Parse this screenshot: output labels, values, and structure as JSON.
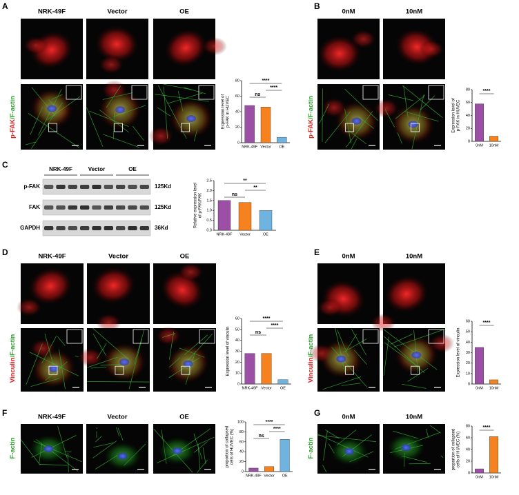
{
  "panels": [
    {
      "letter": "A",
      "columns": [
        "NRK-49F",
        "Vector",
        "OE"
      ],
      "row_label": [
        "p-FAK",
        "/F-actin"
      ]
    },
    {
      "letter": "B",
      "columns": [
        "0nM",
        "10nM"
      ],
      "row_label": [
        "p-FAK",
        "/F-actin"
      ]
    },
    {
      "letter": "C",
      "columns": [
        "NRK-49F",
        "Vector",
        "OE"
      ],
      "blot_rows": [
        "p-FAK",
        "FAK",
        "GAPDH"
      ],
      "blot_sizes": [
        "125Kd",
        "125Kd",
        "36Kd"
      ]
    },
    {
      "letter": "D",
      "columns": [
        "NRK-49F",
        "Vector",
        "OE"
      ],
      "row_label": [
        "Vinculin",
        "/F-actin"
      ]
    },
    {
      "letter": "E",
      "columns": [
        "0nM",
        "10nM"
      ],
      "row_label": [
        "Vinculin",
        "/F-actin"
      ]
    },
    {
      "letter": "F",
      "columns": [
        "NRK-49F",
        "Vector",
        "OE"
      ],
      "row_label": [
        "F-actin"
      ]
    },
    {
      "letter": "G",
      "columns": [
        "0nM",
        "10nM"
      ],
      "row_label": [
        "F-actin"
      ]
    }
  ],
  "chart_data": [
    {
      "type": "bar",
      "y_label": [
        "Expression level of",
        "p-FAK in HUVEC"
      ],
      "categories": [
        "NRK-49F",
        "Vector",
        "OE"
      ],
      "values": [
        48,
        46,
        7
      ],
      "colors": [
        "#9b4fa5",
        "#f5821f",
        "#6fb3e0"
      ],
      "ylim": [
        0,
        80
      ],
      "yticks": [
        0,
        20,
        40,
        60,
        80
      ],
      "annotations": [
        "****",
        "ns",
        "****"
      ]
    },
    {
      "type": "bar",
      "y_label": [
        "Expression level of",
        "p-FAK in HUVEC"
      ],
      "categories": [
        "0nM",
        "10nM"
      ],
      "values": [
        58,
        8
      ],
      "colors": [
        "#9b4fa5",
        "#f5821f"
      ],
      "ylim": [
        0,
        80
      ],
      "yticks": [
        0,
        20,
        40,
        60,
        80
      ],
      "annotations": [
        "****"
      ]
    },
    {
      "type": "bar",
      "y_label": [
        "Relative expression level",
        "of p-FAK/FAK"
      ],
      "categories": [
        "NRK-49F",
        "Vector",
        "OE"
      ],
      "values": [
        1.5,
        1.4,
        1.0
      ],
      "colors": [
        "#9b4fa5",
        "#f5821f",
        "#6fb3e0"
      ],
      "ylim": [
        0,
        2.5
      ],
      "yticks": [
        {
          "value": 0,
          "label": "0.0"
        },
        0.5,
        {
          "value": 1,
          "label": "1.0"
        },
        1.5,
        {
          "value": 2,
          "label": "2.0"
        },
        2.5
      ],
      "annotations": [
        "**",
        "ns",
        "**"
      ]
    },
    {
      "type": "bar",
      "y_label": [
        "Expression level of vinculin"
      ],
      "categories": [
        "NRK-49F",
        "Vector",
        "OE"
      ],
      "values": [
        28,
        28,
        4
      ],
      "colors": [
        "#9b4fa5",
        "#f5821f",
        "#6fb3e0"
      ],
      "ylim": [
        0,
        60
      ],
      "yticks": [
        0,
        10,
        20,
        30,
        40,
        50,
        60
      ],
      "annotations": [
        "****",
        "ns",
        "****"
      ]
    },
    {
      "type": "bar",
      "y_label": [
        "Expression level of vinculin"
      ],
      "categories": [
        "0nM",
        "10nM"
      ],
      "values": [
        35,
        4
      ],
      "colors": [
        "#9b4fa5",
        "#f5821f"
      ],
      "ylim": [
        0,
        60
      ],
      "yticks": [
        0,
        10,
        20,
        30,
        40,
        50,
        60
      ],
      "annotations": [
        "****"
      ]
    },
    {
      "type": "bar",
      "y_label": [
        "proportion of collapsed",
        "cells of HUVEC (%)"
      ],
      "categories": [
        "NRK-49F",
        "Vector",
        "OE"
      ],
      "values": [
        7,
        10,
        65
      ],
      "colors": [
        "#9b4fa5",
        "#f5821f",
        "#6fb3e0"
      ],
      "ylim": [
        0,
        100
      ],
      "yticks": [
        0,
        20,
        40,
        60,
        80,
        100
      ],
      "annotations": [
        "****",
        "ns",
        "****"
      ]
    },
    {
      "type": "bar",
      "y_label": [
        "proportion of collapsed",
        "cells of HUVEC (%)"
      ],
      "categories": [
        "0nM",
        "10nM"
      ],
      "values": [
        7,
        62
      ],
      "colors": [
        "#9b4fa5",
        "#f5821f"
      ],
      "ylim": [
        0,
        80
      ],
      "yticks": [
        0,
        20,
        40,
        60,
        80
      ],
      "annotations": [
        "****"
      ]
    }
  ]
}
